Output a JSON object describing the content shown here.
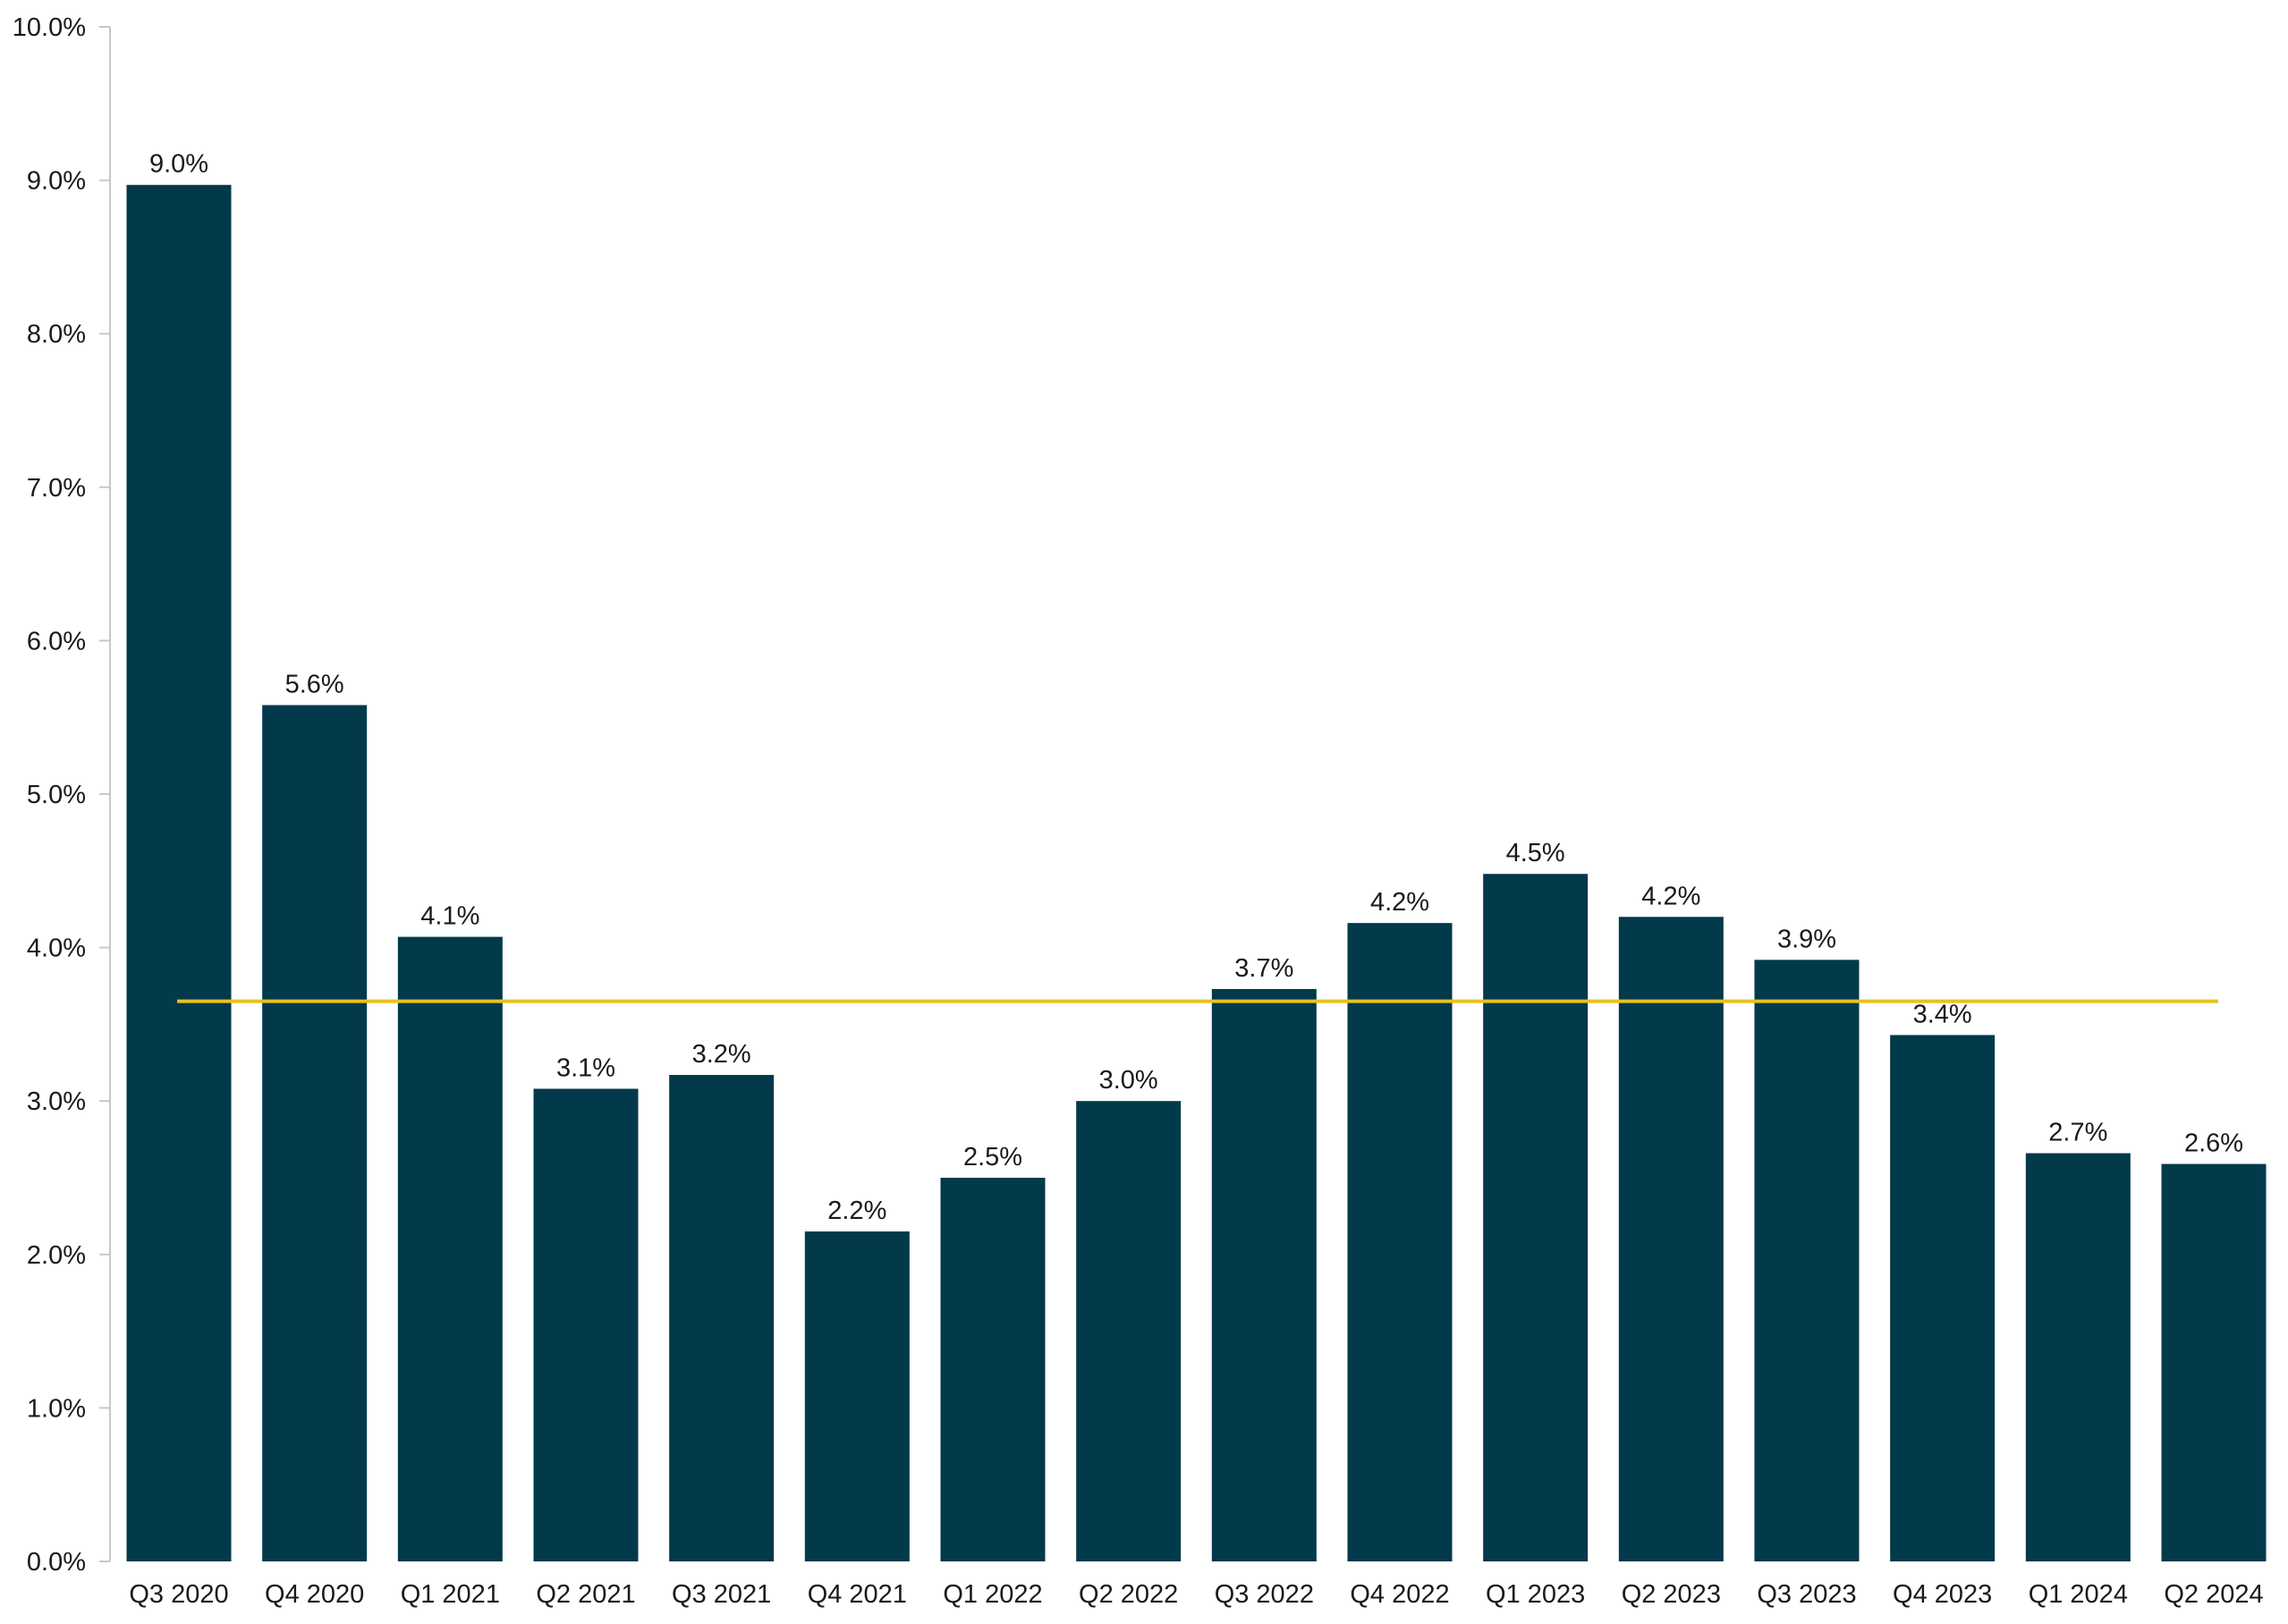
{
  "chart_data": {
    "type": "bar",
    "title": "",
    "xlabel": "",
    "ylabel": "",
    "categories": [
      "Q3 2020",
      "Q4 2020",
      "Q1 2021",
      "Q2 2021",
      "Q3 2021",
      "Q4 2021",
      "Q1 2022",
      "Q2 2022",
      "Q3 2022",
      "Q4 2022",
      "Q1 2023",
      "Q2 2023",
      "Q3 2023",
      "Q4 2023",
      "Q1 2024",
      "Q2 2024"
    ],
    "values": [
      8.97,
      5.58,
      4.07,
      3.08,
      3.17,
      2.15,
      2.5,
      3.0,
      3.73,
      4.16,
      4.48,
      4.2,
      3.92,
      3.43,
      2.66,
      2.59
    ],
    "data_labels": [
      "9.0%",
      "5.6%",
      "4.1%",
      "3.1%",
      "3.2%",
      "2.2%",
      "2.5%",
      "3.0%",
      "3.7%",
      "4.2%",
      "4.5%",
      "4.2%",
      "3.9%",
      "3.4%",
      "2.7%",
      "2.6%"
    ],
    "ylim": [
      0,
      10
    ],
    "y_ticks": [
      0,
      1,
      2,
      3,
      4,
      5,
      6,
      7,
      8,
      9,
      10
    ],
    "y_tick_labels": [
      "0.0%",
      "1.0%",
      "2.0%",
      "3.0%",
      "4.0%",
      "5.0%",
      "6.0%",
      "7.0%",
      "8.0%",
      "9.0%",
      "10.0%"
    ],
    "reference_line": {
      "value": 3.65
    },
    "grid": false,
    "legend": "none",
    "colors": {
      "bar": "#023a4b",
      "reference_line": "#e8c21c",
      "axis": "#c8c8c0",
      "text": "#1a1a1a"
    }
  }
}
